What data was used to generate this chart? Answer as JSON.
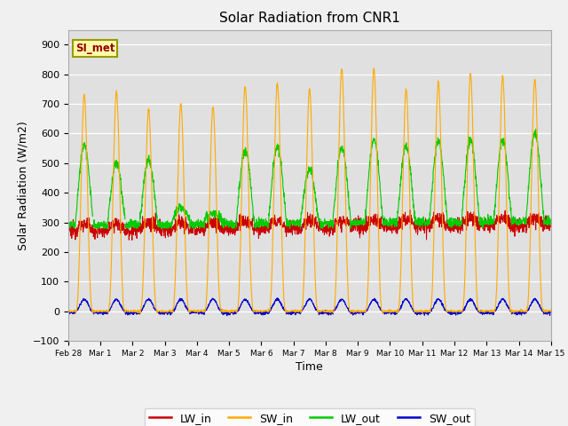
{
  "title": "Solar Radiation from CNR1",
  "xlabel": "Time",
  "ylabel": "Solar Radiation (W/m2)",
  "ylim": [
    -100,
    950
  ],
  "yticks": [
    -100,
    0,
    100,
    200,
    300,
    400,
    500,
    600,
    700,
    800,
    900
  ],
  "annotation": "SI_met",
  "legend": [
    "LW_in",
    "SW_in",
    "LW_out",
    "SW_out"
  ],
  "colors": {
    "LW_in": "#cc0000",
    "SW_in": "#ffaa00",
    "LW_out": "#00cc00",
    "SW_out": "#0000cc"
  },
  "fig_facecolor": "#f0f0f0",
  "plot_bg_color": "#e0e0e0",
  "n_days": 15,
  "points_per_day": 144
}
